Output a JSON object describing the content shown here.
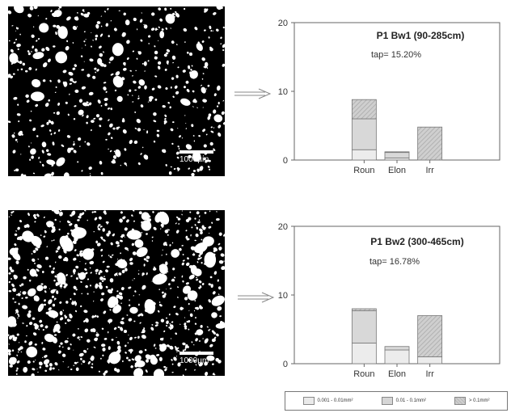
{
  "micrographs": [
    {
      "scale_label": "1000µm"
    },
    {
      "scale_label": "1000µm"
    }
  ],
  "chart_data": [
    {
      "type": "bar",
      "title": "P1 Bw1 (90-285cm)",
      "subtitle": "tap= 15.20%",
      "categories": [
        "Roun",
        "Elon",
        "Irr"
      ],
      "ylim": [
        0,
        20
      ],
      "yticks": [
        0,
        10,
        20
      ],
      "series": [
        {
          "name": "0.001 - 0.01mm²",
          "values": [
            1.5,
            0.3,
            0.0
          ]
        },
        {
          "name": "0.01 - 0.1mm²",
          "values": [
            4.5,
            0.8,
            0.0
          ]
        },
        {
          "name": "> 0.1mm²",
          "values": [
            2.8,
            0.1,
            4.8
          ]
        }
      ]
    },
    {
      "type": "bar",
      "title": "P1 Bw2 (300-465cm)",
      "subtitle": "tap= 16.78%",
      "categories": [
        "Roun",
        "Elon",
        "Irr"
      ],
      "ylim": [
        0,
        20
      ],
      "yticks": [
        0,
        10,
        20
      ],
      "series": [
        {
          "name": "0.001 - 0.01mm²",
          "values": [
            3.0,
            2.0,
            1.0
          ]
        },
        {
          "name": "0.01 - 0.1mm²",
          "values": [
            4.7,
            0.5,
            0.0
          ]
        },
        {
          "name": "> 0.1mm²",
          "values": [
            0.3,
            0.0,
            6.0
          ]
        }
      ]
    }
  ],
  "legend": {
    "items": [
      {
        "label": "0.001 - 0.01mm²"
      },
      {
        "label": "0.01 - 0.1mm²"
      },
      {
        "label": "> 0.1mm²"
      }
    ]
  }
}
